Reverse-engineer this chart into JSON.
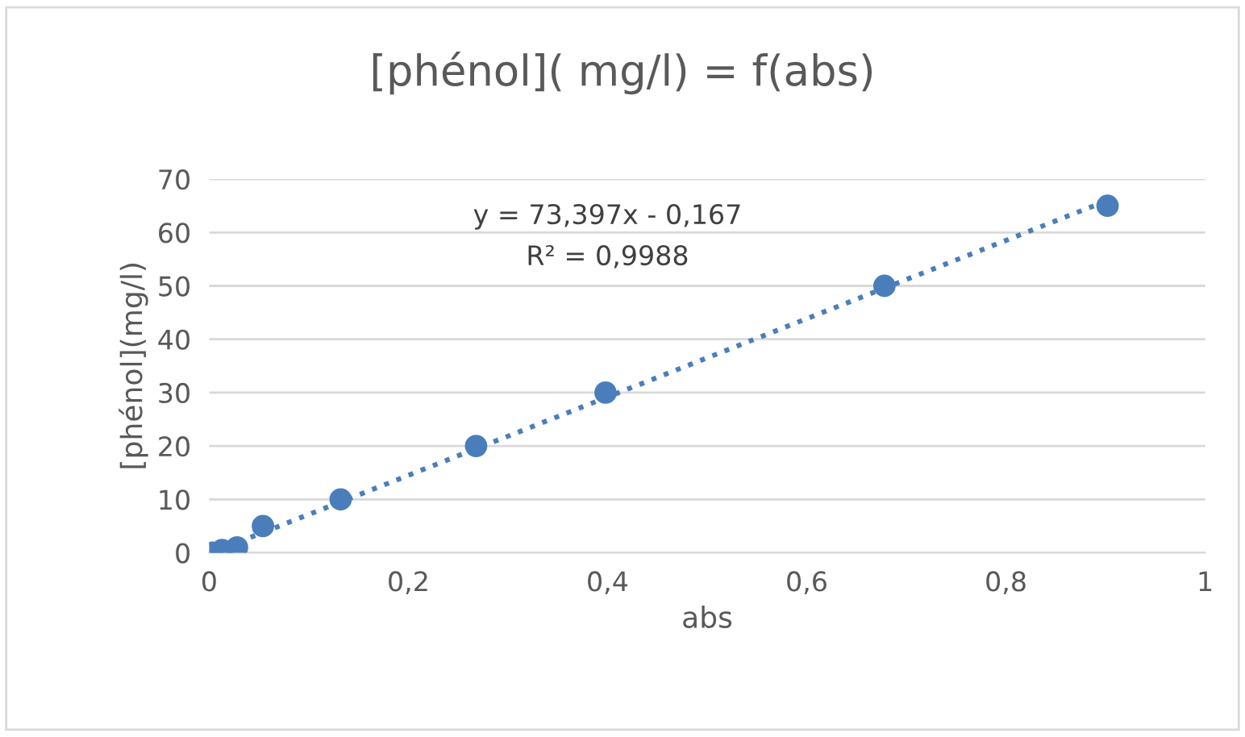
{
  "chart_data": {
    "type": "scatter",
    "title": "[phénol]( mg/l) = f(abs)",
    "xlabel": "abs",
    "ylabel": "[phénol](mg/l)",
    "xlim": [
      0,
      1
    ],
    "xticks": [
      {
        "value": 0,
        "label": "0"
      },
      {
        "value": 0.2,
        "label": "0,2"
      },
      {
        "value": 0.4,
        "label": "0,4"
      },
      {
        "value": 0.6,
        "label": "0,6"
      },
      {
        "value": 0.8,
        "label": "0,8"
      },
      {
        "value": 1,
        "label": "1"
      }
    ],
    "ylim": [
      0,
      70
    ],
    "yticks": [
      0,
      10,
      20,
      30,
      40,
      50,
      60,
      70
    ],
    "grid": "y",
    "marker": "circle",
    "series": [
      {
        "color": "#4a7ebb",
        "x": [
          0.003,
          0.013,
          0.028,
          0.054,
          0.132,
          0.268,
          0.398,
          0.678,
          0.902
        ],
        "values": [
          0,
          0.5,
          1,
          5,
          10,
          20,
          30,
          50,
          65
        ]
      },
      {
        "type": "line",
        "color": "#4a7ebb",
        "line_style": "dotted",
        "marker": "none",
        "x": [
          0.005,
          0.902
        ],
        "values": [
          0.2,
          66
        ]
      }
    ],
    "annotations": [
      "y = 73,397x - 0,167",
      "R² = 0,9988"
    ]
  }
}
